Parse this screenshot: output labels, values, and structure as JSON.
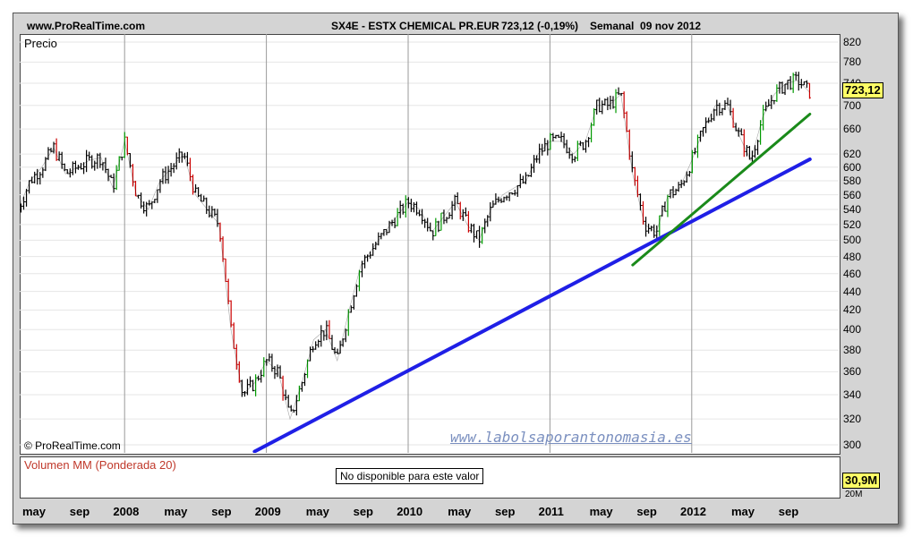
{
  "header": {
    "site": "www.ProRealTime.com",
    "instrument": "SX4E - ESTX CHEMICAL PR.EUR",
    "quote": "723,12 (-0,19%)",
    "period": "Semanal  09 nov 2012"
  },
  "price_panel": {
    "label": "Precio",
    "copyright": "© ProRealTime.com",
    "watermark": "www.labolsaporantonomasia.es",
    "last_price_badge": "723,12"
  },
  "volume_panel": {
    "title": "Volumen MM (Ponderada 20)",
    "message": "No disponible para este valor",
    "badge": "30,9M",
    "tick": "20M"
  },
  "colors": {
    "candle": "#000000",
    "down_candle": "#cc0000",
    "up_candle": "#009900",
    "blue_trendline": "#1f1fe6",
    "green_trendline": "#1a8a1a",
    "badge": "#ffff66",
    "volume_title": "#c0392b"
  },
  "chart_data": {
    "type": "line",
    "title": "SX4E - ESTX CHEMICAL PR.EUR",
    "subtitle": "723,12 (-0,19%)  Semanal  09 nov 2012",
    "ylabel": "Precio",
    "y_scale": "log",
    "ylim": [
      290,
      840
    ],
    "y_ticks": [
      820,
      780,
      740,
      700,
      660,
      620,
      600,
      580,
      560,
      540,
      520,
      500,
      480,
      460,
      440,
      420,
      400,
      380,
      360,
      340,
      320,
      300
    ],
    "x_ticks": [
      "may",
      "sep",
      "2008",
      "may",
      "sep",
      "2009",
      "may",
      "sep",
      "2010",
      "may",
      "sep",
      "2011",
      "may",
      "sep",
      "2012",
      "may",
      "sep"
    ],
    "xlim": [
      "2007-04",
      "2012-11"
    ],
    "series": [
      {
        "x": [
          "2007-04",
          "2007-05",
          "2007-06",
          "2007-07",
          "2007-08",
          "2007-09",
          "2007-10",
          "2007-11",
          "2007-12",
          "2008-01",
          "2008-02",
          "2008-03",
          "2008-04",
          "2008-05",
          "2008-06",
          "2008-07",
          "2008-08",
          "2008-09",
          "2008-10",
          "2008-11",
          "2008-12",
          "2009-01",
          "2009-02",
          "2009-03",
          "2009-04",
          "2009-05",
          "2009-06",
          "2009-07",
          "2009-08",
          "2009-09",
          "2009-10",
          "2009-11",
          "2009-12",
          "2010-01",
          "2010-02",
          "2010-03",
          "2010-04",
          "2010-05",
          "2010-06",
          "2010-07",
          "2010-08",
          "2010-09",
          "2010-10",
          "2010-11",
          "2010-12",
          "2011-01",
          "2011-02",
          "2011-03",
          "2011-04",
          "2011-05",
          "2011-06",
          "2011-07",
          "2011-08",
          "2011-09",
          "2011-10",
          "2011-11",
          "2011-12",
          "2012-01",
          "2012-02",
          "2012-03",
          "2012-04",
          "2012-05",
          "2012-06",
          "2012-07",
          "2012-08",
          "2012-09",
          "2012-10",
          "2012-11"
        ],
        "values": [
          540,
          580,
          600,
          630,
          590,
          600,
          610,
          615,
          570,
          640,
          560,
          540,
          580,
          600,
          620,
          560,
          540,
          520,
          400,
          340,
          350,
          370,
          360,
          320,
          350,
          390,
          400,
          370,
          420,
          470,
          490,
          510,
          530,
          550,
          540,
          510,
          530,
          550,
          520,
          500,
          540,
          560,
          570,
          580,
          620,
          640,
          640,
          620,
          640,
          700,
          700,
          720,
          590,
          520,
          510,
          560,
          570,
          610,
          660,
          700,
          700,
          650,
          610,
          680,
          720,
          740,
          745,
          723
        ]
      }
    ],
    "trendlines": [
      {
        "name": "",
        "color": "blue",
        "x": [
          "2008-12",
          "2012-11"
        ],
        "y": [
          295,
          612
        ]
      },
      {
        "name": "",
        "color": "green",
        "x": [
          "2011-08",
          "2012-11"
        ],
        "y": [
          470,
          685
        ]
      }
    ],
    "grid": true,
    "legend": "none"
  }
}
